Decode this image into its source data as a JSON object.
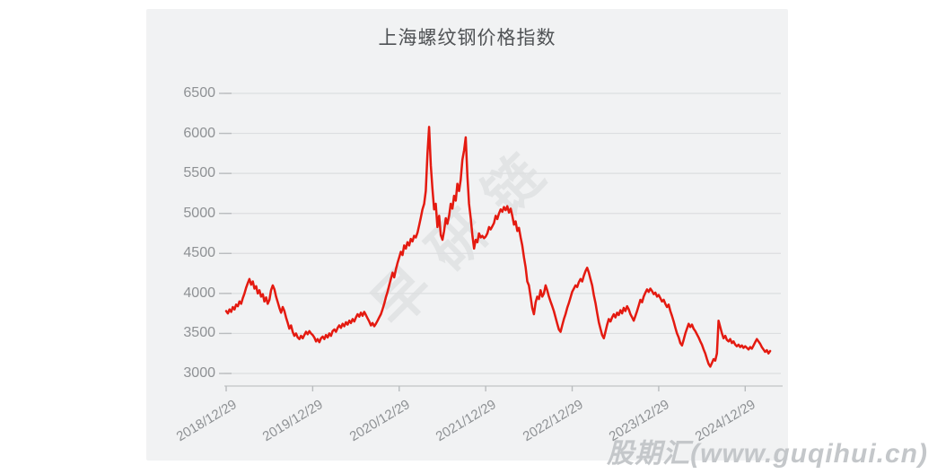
{
  "watermarks": {
    "center": "早研链",
    "bottom_right": "股期汇(www.guqihui.cn)"
  },
  "chart_data": {
    "type": "line",
    "title": "上海螺纹钢价格指数",
    "xlabel": "",
    "ylabel": "",
    "ylim": [
      3000,
      6500
    ],
    "grid": true,
    "legend": "none",
    "line_color": "#e41a10",
    "y_ticks": [
      6500,
      6000,
      5500,
      5000,
      4500,
      4000,
      3500,
      3000
    ],
    "x_tick_labels": [
      "2018/12/29",
      "2019/12/29",
      "2020/12/29",
      "2021/12/29",
      "2022/12/29",
      "2023/12/29",
      "2024/12/29"
    ],
    "x_tick_week_indices": [
      0,
      52,
      104,
      156,
      208,
      260,
      312
    ],
    "series": [
      {
        "name": "上海螺纹钢价格指数",
        "cadence": "weekly",
        "start": "2018/12/29",
        "values": [
          3780,
          3750,
          3800,
          3770,
          3830,
          3800,
          3860,
          3840,
          3900,
          3870,
          3940,
          4000,
          4070,
          4130,
          4180,
          4110,
          4150,
          4060,
          4090,
          4000,
          4040,
          3960,
          3990,
          3900,
          3950,
          3870,
          3920,
          4040,
          4100,
          4050,
          3960,
          3890,
          3820,
          3760,
          3830,
          3780,
          3700,
          3630,
          3560,
          3600,
          3520,
          3470,
          3500,
          3450,
          3430,
          3470,
          3440,
          3480,
          3520,
          3490,
          3530,
          3500,
          3480,
          3450,
          3400,
          3430,
          3390,
          3440,
          3460,
          3430,
          3480,
          3450,
          3500,
          3470,
          3530,
          3550,
          3520,
          3570,
          3600,
          3570,
          3620,
          3590,
          3640,
          3610,
          3660,
          3630,
          3680,
          3650,
          3700,
          3740,
          3710,
          3760,
          3720,
          3770,
          3730,
          3690,
          3650,
          3600,
          3630,
          3590,
          3620,
          3660,
          3700,
          3740,
          3800,
          3870,
          3950,
          4020,
          4100,
          4180,
          4260,
          4200,
          4300,
          4380,
          4450,
          4520,
          4480,
          4600,
          4560,
          4640,
          4600,
          4680,
          4650,
          4720,
          4700,
          4760,
          4850,
          4950,
          5050,
          5120,
          5280,
          5750,
          6080,
          5600,
          5310,
          5050,
          5120,
          4830,
          4970,
          4730,
          4670,
          4780,
          4940,
          4870,
          4970,
          5120,
          5060,
          5220,
          5160,
          5370,
          5280,
          5420,
          5670,
          5790,
          5950,
          5460,
          5120,
          4940,
          4730,
          4560,
          4670,
          4640,
          4750,
          4700,
          4720,
          4690,
          4710,
          4750,
          4830,
          4800,
          4840,
          4880,
          4970,
          4930,
          5000,
          5050,
          5020,
          5080,
          5040,
          5090,
          5010,
          5060,
          4970,
          4860,
          4900,
          4780,
          4820,
          4700,
          4600,
          4450,
          4330,
          4150,
          4100,
          3960,
          3820,
          3740,
          3890,
          3960,
          3930,
          4040,
          3960,
          4000,
          4100,
          4040,
          3960,
          3900,
          3840,
          3780,
          3700,
          3620,
          3550,
          3520,
          3600,
          3680,
          3740,
          3820,
          3880,
          3950,
          4020,
          4060,
          4100,
          4080,
          4140,
          4180,
          4150,
          4220,
          4280,
          4320,
          4260,
          4180,
          4100,
          3980,
          3880,
          3760,
          3640,
          3560,
          3480,
          3440,
          3520,
          3610,
          3680,
          3650,
          3700,
          3740,
          3700,
          3760,
          3730,
          3790,
          3750,
          3820,
          3780,
          3840,
          3800,
          3740,
          3700,
          3660,
          3720,
          3780,
          3850,
          3920,
          3890,
          3960,
          4010,
          4050,
          4020,
          4060,
          4030,
          3990,
          4010,
          3960,
          3980,
          3940,
          3900,
          3920,
          3870,
          3830,
          3860,
          3780,
          3720,
          3650,
          3570,
          3500,
          3450,
          3380,
          3350,
          3420,
          3500,
          3560,
          3620,
          3580,
          3610,
          3560,
          3530,
          3490,
          3450,
          3400,
          3360,
          3300,
          3250,
          3180,
          3120,
          3085,
          3130,
          3180,
          3160,
          3250,
          3660,
          3580,
          3500,
          3440,
          3470,
          3420,
          3400,
          3430,
          3380,
          3400,
          3360,
          3340,
          3360,
          3330,
          3350,
          3320,
          3340,
          3320,
          3300,
          3330,
          3310,
          3350,
          3390,
          3430,
          3400,
          3370,
          3330,
          3300,
          3270,
          3290,
          3250,
          3280
        ]
      }
    ]
  }
}
